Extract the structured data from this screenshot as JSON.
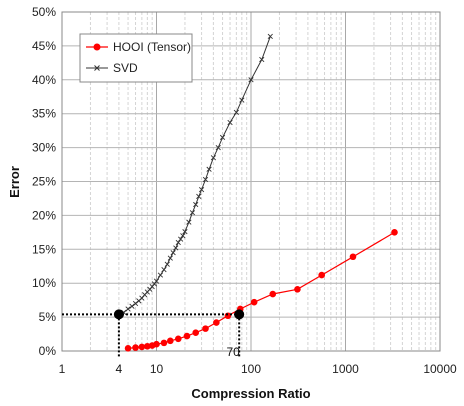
{
  "chart_data": {
    "type": "scatter",
    "title": "",
    "xlabel": "Compression Ratio",
    "ylabel": "Error",
    "x_scale": "log",
    "xlim": [
      1,
      10000
    ],
    "ylim": [
      0,
      0.5
    ],
    "x_ticks": [
      1,
      10,
      100,
      1000,
      10000
    ],
    "x_tick_labels": [
      "1",
      "10",
      "100",
      "1000",
      "10000"
    ],
    "y_ticks": [
      0,
      0.05,
      0.1,
      0.15,
      0.2,
      0.25,
      0.3,
      0.35,
      0.4,
      0.45,
      0.5
    ],
    "y_tick_labels": [
      "0%",
      "5%",
      "10%",
      "15%",
      "20%",
      "25%",
      "30%",
      "35%",
      "40%",
      "45%",
      "50%"
    ],
    "grid": true,
    "legend": "top-left",
    "series": [
      {
        "name": "HOOI (Tensor)",
        "color": "#ff0000",
        "marker": "circle",
        "x": [
          5,
          6,
          7,
          8,
          9,
          10,
          12,
          14,
          17,
          21,
          26,
          33,
          43,
          57,
          77,
          108,
          170,
          310,
          560,
          1200,
          3300
        ],
        "y": [
          0.004,
          0.005,
          0.006,
          0.007,
          0.008,
          0.01,
          0.012,
          0.015,
          0.018,
          0.022,
          0.027,
          0.033,
          0.042,
          0.052,
          0.062,
          0.072,
          0.084,
          0.091,
          0.112,
          0.139,
          0.175
        ]
      },
      {
        "name": "SVD",
        "color": "#333333",
        "marker": "x",
        "x": [
          4,
          4.5,
          5,
          5.5,
          6,
          6.5,
          7,
          7.5,
          8,
          8.5,
          9,
          9.5,
          10,
          11,
          12,
          13,
          14,
          15,
          16,
          17,
          18,
          19,
          20,
          22,
          24,
          26,
          28,
          30,
          33,
          36,
          40,
          45,
          50,
          60,
          70,
          80,
          100,
          130,
          160
        ],
        "y": [
          0.055,
          0.057,
          0.062,
          0.066,
          0.07,
          0.074,
          0.078,
          0.083,
          0.087,
          0.091,
          0.095,
          0.099,
          0.103,
          0.112,
          0.12,
          0.128,
          0.137,
          0.145,
          0.152,
          0.16,
          0.165,
          0.17,
          0.176,
          0.19,
          0.204,
          0.216,
          0.228,
          0.238,
          0.253,
          0.268,
          0.285,
          0.3,
          0.315,
          0.337,
          0.352,
          0.37,
          0.4,
          0.43,
          0.464
        ]
      }
    ],
    "annotations": [
      {
        "label": "4",
        "x": 4,
        "y": 0.054
      },
      {
        "label": "70",
        "x": 75,
        "y": 0.054
      }
    ]
  }
}
